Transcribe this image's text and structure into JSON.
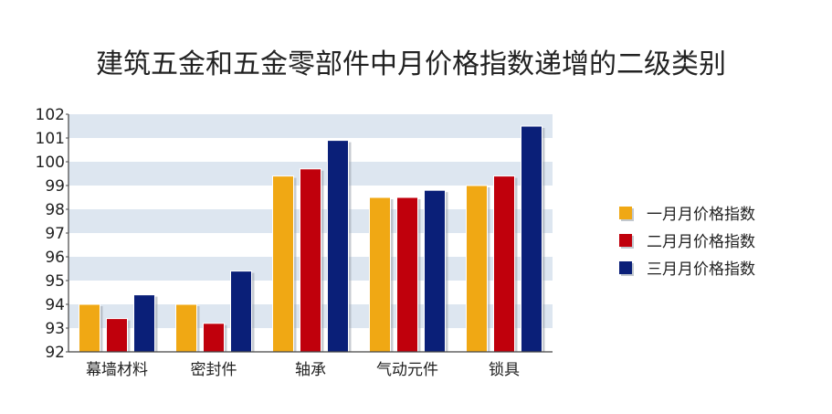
{
  "chart_data": {
    "type": "bar",
    "title": "建筑五金和五金零部件中月价格指数递增的二级类别",
    "categories": [
      "幕墙材料",
      "密封件",
      "轴承",
      "气动元件",
      "锁具"
    ],
    "series": [
      {
        "name": "一月月价格指数",
        "color": "#f0a814",
        "values": [
          94.0,
          94.0,
          99.4,
          98.5,
          99.0
        ]
      },
      {
        "name": "二月月价格指数",
        "color": "#c0000c",
        "values": [
          93.4,
          93.2,
          99.7,
          98.5,
          99.4
        ]
      },
      {
        "name": "三月月价格指数",
        "color": "#0a1f78",
        "values": [
          94.4,
          95.4,
          100.9,
          98.8,
          101.5
        ]
      }
    ],
    "ylim": [
      92,
      102
    ],
    "yticks": [
      92,
      93,
      94,
      95,
      96,
      97,
      98,
      99,
      100,
      101,
      102
    ],
    "grid": "alternating bands",
    "legend": "right"
  }
}
